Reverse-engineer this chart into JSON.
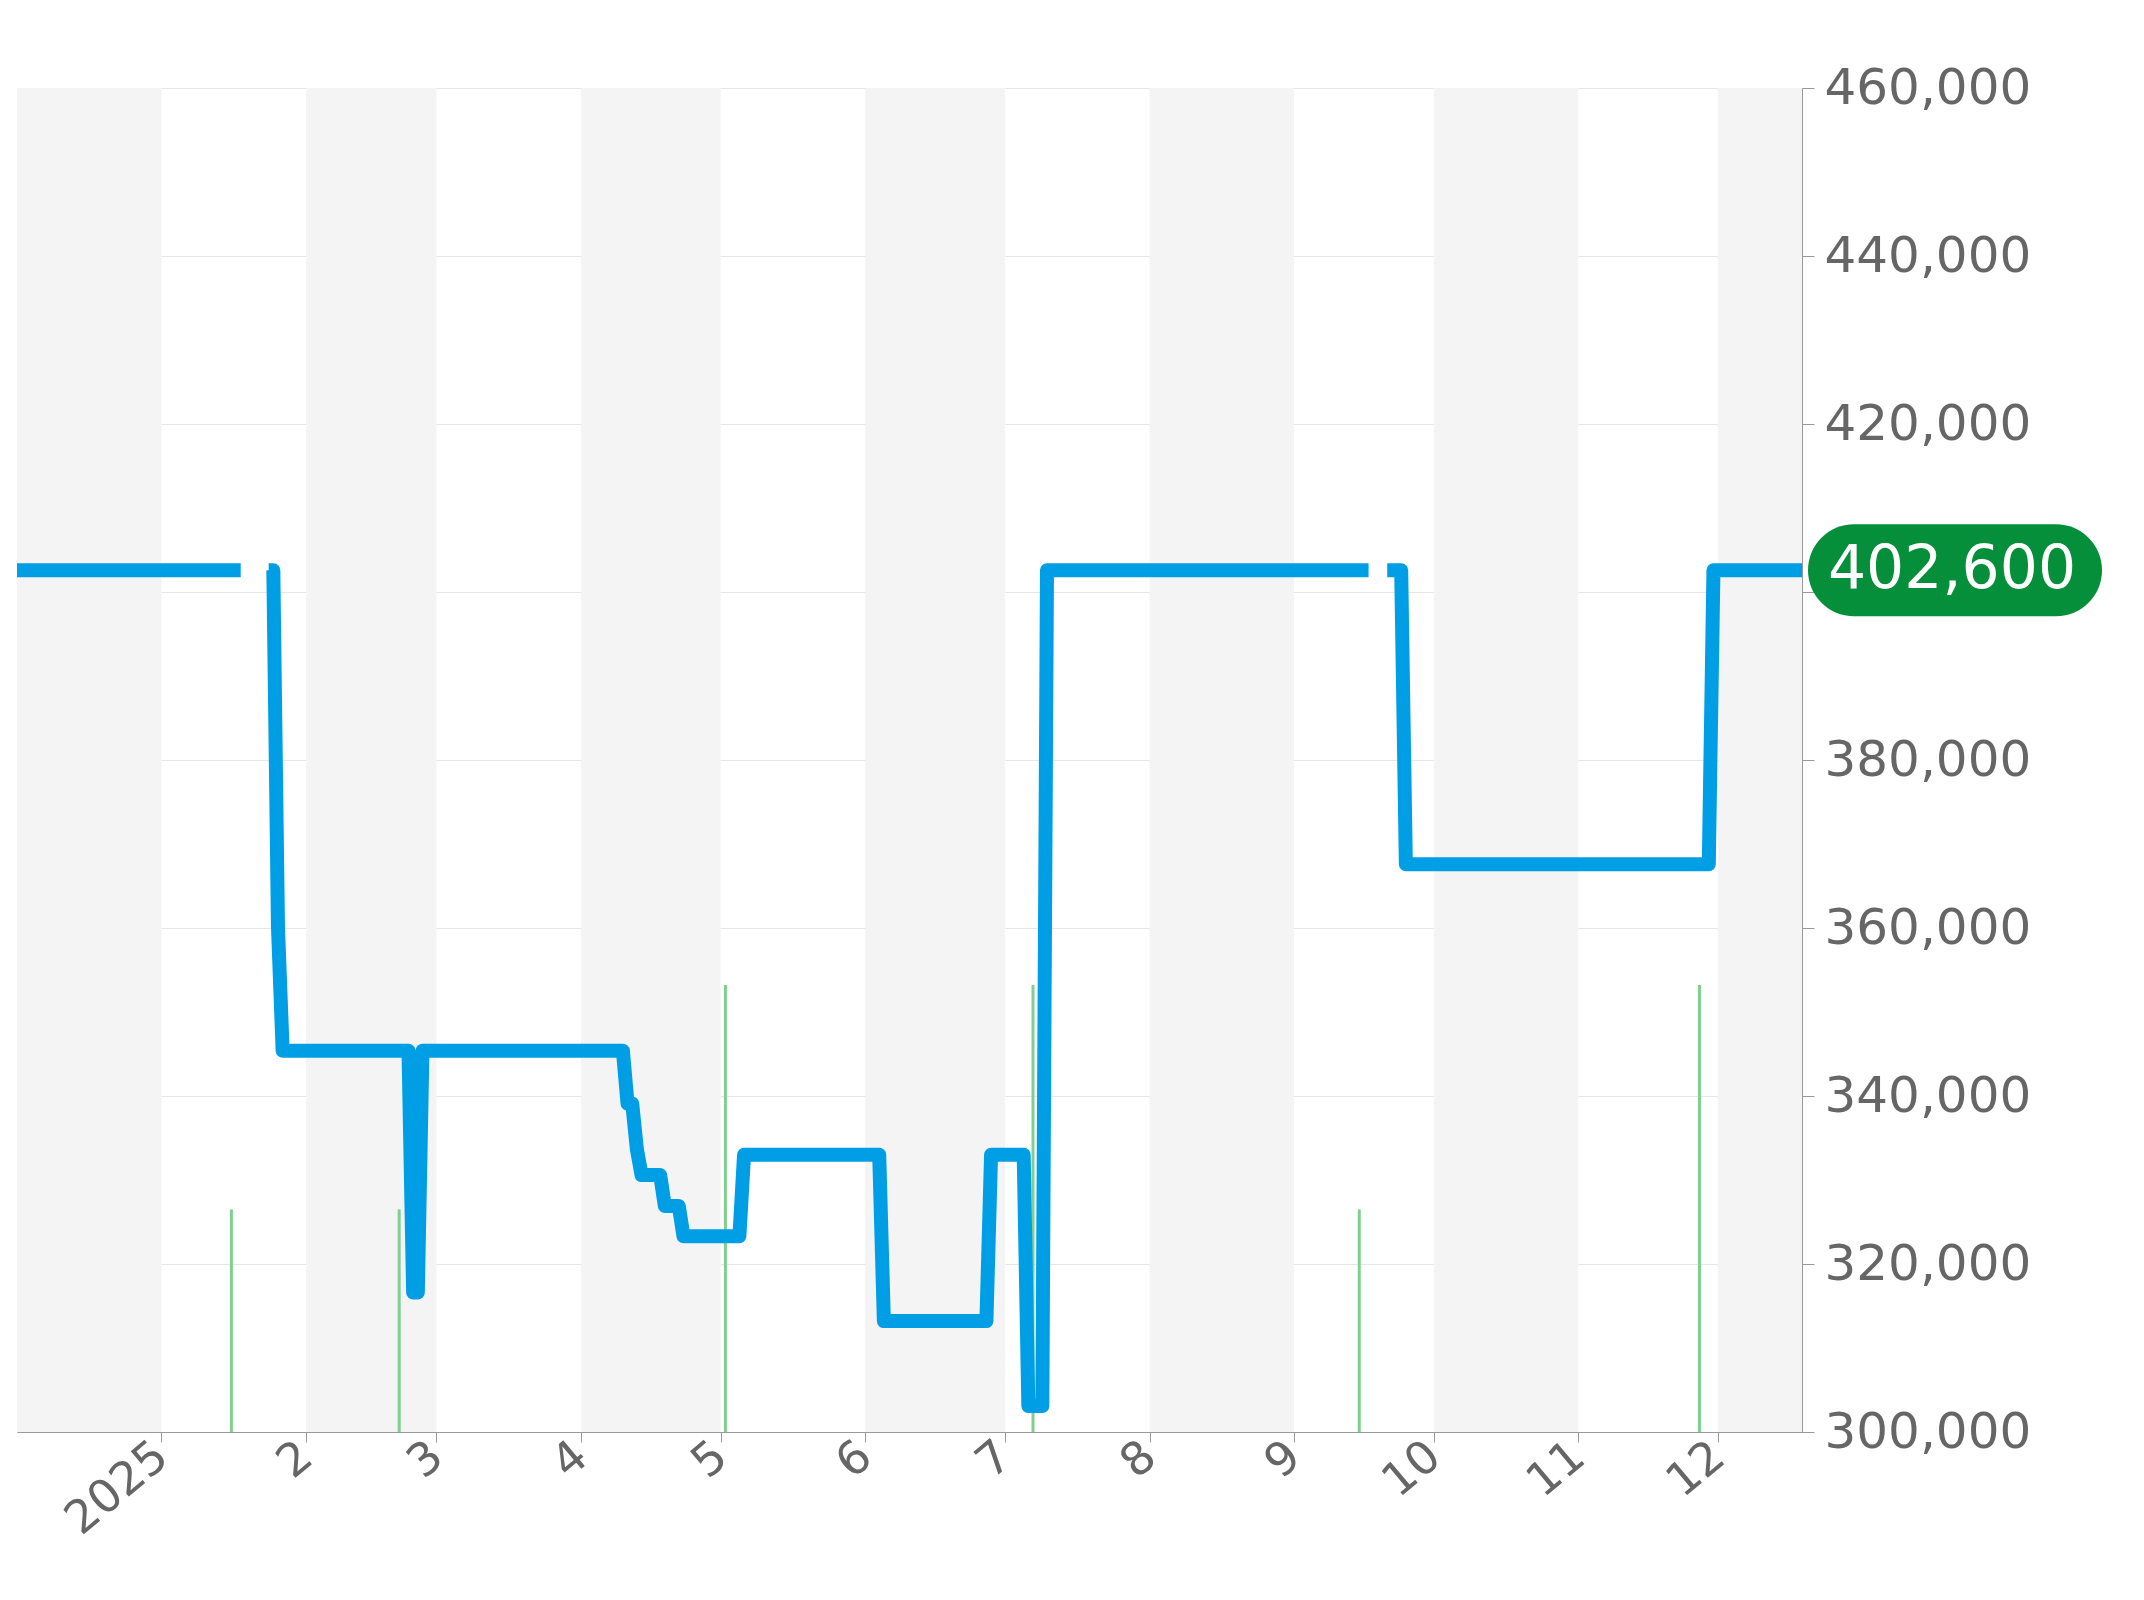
{
  "chart_data": {
    "type": "line",
    "x": [
      "2024-12-01",
      "2025-01-18",
      "2025-01-21",
      "2025-01-24",
      "2025-01-25",
      "2025-01-26",
      "2025-01-27",
      "2025-02-23",
      "2025-02-24",
      "2025-02-25",
      "2025-02-26",
      "2025-04-10",
      "2025-04-11",
      "2025-04-12",
      "2025-04-13",
      "2025-04-14",
      "2025-04-18",
      "2025-04-19",
      "2025-04-22",
      "2025-04-23",
      "2025-05-05",
      "2025-05-06",
      "2025-06-04",
      "2025-06-05",
      "2025-06-27",
      "2025-06-28",
      "2025-07-05",
      "2025-07-06",
      "2025-07-09",
      "2025-07-10",
      "2025-09-17",
      "2025-09-19",
      "2025-09-21",
      "2025-09-24",
      "2025-09-25",
      "2025-11-29",
      "2025-11-30",
      "2025-12-19"
    ],
    "series": [
      {
        "color": "#009fe5",
        "values": [
          402600,
          402600,
          null,
          402600,
          402600,
          360000,
          345400,
          345400,
          316600,
          316600,
          345400,
          345400,
          339100,
          339100,
          333700,
          330600,
          330600,
          326900,
          326900,
          323300,
          323300,
          333000,
          333000,
          313200,
          313200,
          333000,
          333000,
          303100,
          303100,
          402600,
          402600,
          null,
          402600,
          402600,
          367600,
          367600,
          402600,
          402600
        ]
      },
      {
        "type": "bar",
        "color": "#7fd08f",
        "x": [
          "2025-01-16",
          "2025-02-21",
          "2025-05-02",
          "2025-07-07",
          "2025-09-15",
          "2025-11-27"
        ],
        "values": [
          326500,
          326500,
          353200,
          353200,
          326500,
          353200
        ]
      }
    ],
    "xlim": [
      "2024-12-01",
      "2025-12-19"
    ],
    "xticks": [
      {
        "value": "2025-01-01",
        "label": "2025"
      },
      {
        "value": "2025-02-01",
        "label": "2"
      },
      {
        "value": "2025-03-01",
        "label": "3"
      },
      {
        "value": "2025-04-01",
        "label": "4"
      },
      {
        "value": "2025-05-01",
        "label": "5"
      },
      {
        "value": "2025-06-01",
        "label": "6"
      },
      {
        "value": "2025-07-01",
        "label": "7"
      },
      {
        "value": "2025-08-01",
        "label": "8"
      },
      {
        "value": "2025-09-01",
        "label": "9"
      },
      {
        "value": "2025-10-01",
        "label": "10"
      },
      {
        "value": "2025-11-01",
        "label": "11"
      },
      {
        "value": "2025-12-01",
        "label": "12"
      }
    ],
    "ylim": [
      300000,
      460000
    ],
    "yticks": [
      {
        "value": 300000,
        "label": "300,000"
      },
      {
        "value": 320000,
        "label": "320,000"
      },
      {
        "value": 340000,
        "label": "340,000"
      },
      {
        "value": 360000,
        "label": "360,000"
      },
      {
        "value": 380000,
        "label": "380,000"
      },
      {
        "value": 400000,
        "label": null
      },
      {
        "value": 420000,
        "label": "420,000"
      },
      {
        "value": 440000,
        "label": "440,000"
      },
      {
        "value": 460000,
        "label": "460,000"
      }
    ],
    "bands": [
      {
        "axis": "x",
        "from": "2024-12-01",
        "to": "2025-01-01",
        "color": "#f4f4f4"
      },
      {
        "axis": "x",
        "from": "2025-02-01",
        "to": "2025-03-01",
        "color": "#f4f4f4"
      },
      {
        "axis": "x",
        "from": "2025-04-01",
        "to": "2025-05-01",
        "color": "#f4f4f4"
      },
      {
        "axis": "x",
        "from": "2025-06-01",
        "to": "2025-07-01",
        "color": "#f4f4f4"
      },
      {
        "axis": "x",
        "from": "2025-08-01",
        "to": "2025-09-01",
        "color": "#f4f4f4"
      },
      {
        "axis": "x",
        "from": "2025-10-01",
        "to": "2025-11-01",
        "color": "#f4f4f4"
      },
      {
        "axis": "x",
        "from": "2025-12-01",
        "to": "2025-12-19",
        "color": "#f4f4f4"
      }
    ],
    "annotations": [
      {
        "text": "402,600",
        "x": "2025-12-19",
        "y": 402600
      }
    ],
    "grid": "y",
    "marker": "none",
    "line_style": "solid"
  }
}
